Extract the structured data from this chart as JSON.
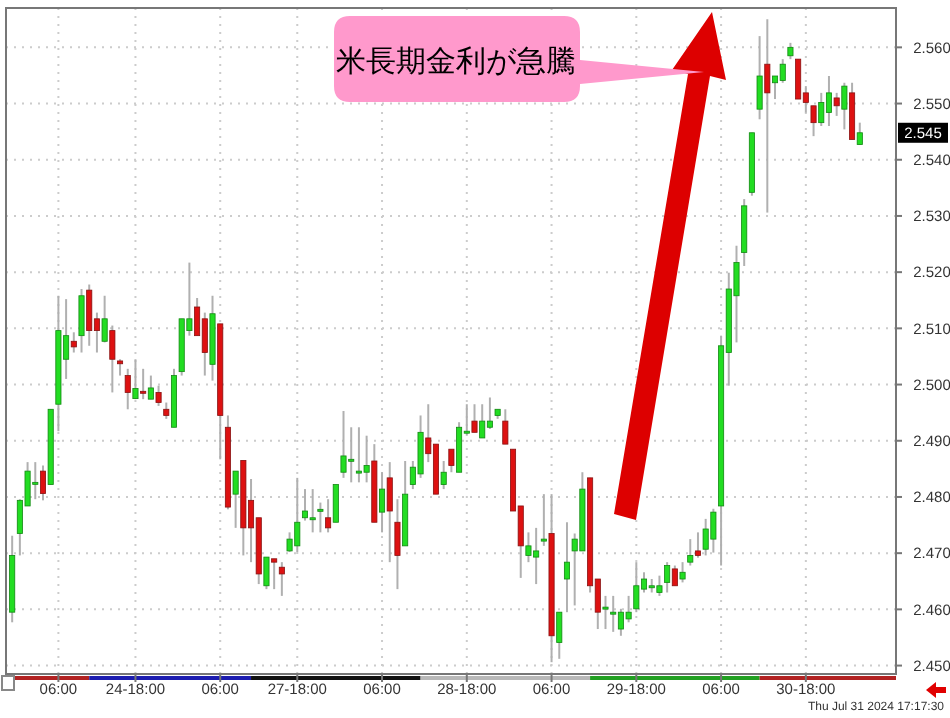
{
  "chart_data": {
    "type": "candlestick",
    "categories": [
      null,
      null,
      null,
      null,
      null,
      null,
      "06:00",
      null,
      null,
      null,
      null,
      null,
      null,
      null,
      null,
      null,
      "24-18:00",
      null,
      null,
      null,
      null,
      null,
      null,
      null,
      null,
      null,
      null,
      "06:00",
      null,
      null,
      null,
      null,
      null,
      null,
      null,
      null,
      null,
      "27-18:00",
      null,
      null,
      null,
      null,
      null,
      null,
      null,
      null,
      null,
      null,
      "06:00",
      null,
      null,
      null,
      null,
      null,
      null,
      null,
      null,
      null,
      null,
      "28-18:00",
      null,
      null,
      null,
      null,
      null,
      null,
      null,
      null,
      null,
      null,
      "06:00",
      null,
      null,
      null,
      null,
      null,
      null,
      null,
      null,
      null,
      null,
      "29-18:00",
      null,
      null,
      null,
      null,
      null,
      null,
      null,
      null,
      null,
      null,
      "06:00",
      null,
      null,
      null,
      null,
      null,
      null,
      null,
      null,
      null,
      null,
      "30-18:00",
      null,
      null,
      null,
      null,
      null,
      null,
      null
    ],
    "ohlc": [
      [
        2.4595,
        2.4731,
        2.4577,
        2.4696
      ],
      [
        2.4735,
        2.4796,
        2.4696,
        2.4794
      ],
      [
        2.4784,
        2.4862,
        2.4784,
        2.4846
      ],
      [
        2.4826,
        2.4862,
        2.4796,
        2.4826
      ],
      [
        2.4846,
        2.4856,
        2.4794,
        2.4806
      ],
      [
        2.4822,
        2.4956,
        2.4822,
        2.4956
      ],
      [
        2.4965,
        2.5158,
        2.4917,
        2.5096
      ],
      [
        2.5045,
        2.5152,
        2.501,
        2.5087
      ],
      [
        2.5077,
        2.5093,
        2.5057,
        2.5067
      ],
      [
        2.5087,
        2.517,
        2.5057,
        2.5158
      ],
      [
        2.5168,
        2.5178,
        2.5069,
        2.5096
      ],
      [
        2.5117,
        2.5128,
        2.5057,
        2.5096
      ],
      [
        2.5077,
        2.5158,
        2.5075,
        2.5117
      ],
      [
        2.5096,
        2.5105,
        2.4986,
        2.5045
      ],
      [
        2.5042,
        2.5045,
        2.5016,
        2.5037
      ],
      [
        2.5016,
        2.5028,
        2.4956,
        2.4986
      ],
      [
        2.4975,
        2.5045,
        2.4974,
        2.4993
      ],
      [
        2.4988,
        2.5028,
        2.4974,
        2.4986
      ],
      [
        2.4974,
        2.5016,
        2.4974,
        2.4994
      ],
      [
        2.4986,
        2.4998,
        2.4962,
        2.4968
      ],
      [
        2.4956,
        2.4968,
        2.4939,
        2.4945
      ],
      [
        2.4924,
        2.5028,
        2.4924,
        2.5016
      ],
      [
        2.5023,
        2.5117,
        2.5016,
        2.5117
      ],
      [
        2.5096,
        2.5217,
        2.5087,
        2.5117
      ],
      [
        2.5138,
        2.5154,
        2.5087,
        2.5087
      ],
      [
        2.5117,
        2.5128,
        2.5016,
        2.5057
      ],
      [
        2.5036,
        2.5158,
        2.5007,
        2.5126
      ],
      [
        2.5108,
        2.5108,
        2.4867,
        2.4945
      ],
      [
        2.4924,
        2.4945,
        2.4778,
        2.4782
      ],
      [
        2.4805,
        2.4846,
        2.4745,
        2.4846
      ],
      [
        2.4865,
        2.4865,
        2.4696,
        2.4745
      ],
      [
        2.4794,
        2.4832,
        2.4684,
        2.4745
      ],
      [
        2.4763,
        2.4763,
        2.4645,
        2.4663
      ],
      [
        2.4642,
        2.4693,
        2.4636,
        2.4693
      ],
      [
        2.469,
        2.469,
        2.4636,
        2.4684
      ],
      [
        2.4675,
        2.4684,
        2.4624,
        2.4663
      ],
      [
        2.4704,
        2.4737,
        2.4702,
        2.4725
      ],
      [
        2.4713,
        2.4834,
        2.4702,
        2.4755
      ],
      [
        2.4763,
        2.4814,
        2.4758,
        2.4775
      ],
      [
        2.4763,
        2.4814,
        2.4737,
        2.4763
      ],
      [
        2.4778,
        2.479,
        2.4737,
        2.4778
      ],
      [
        2.4763,
        2.4796,
        2.4737,
        2.4745
      ],
      [
        2.4755,
        2.4822,
        2.4755,
        2.4822
      ],
      [
        2.4844,
        2.4953,
        2.4834,
        2.4873
      ],
      [
        2.4867,
        2.4924,
        2.4826,
        2.4867
      ],
      [
        2.4846,
        2.4924,
        2.4826,
        2.4846
      ],
      [
        2.4844,
        2.4909,
        2.4826,
        2.4856
      ],
      [
        2.4864,
        2.4894,
        2.4755,
        2.4755
      ],
      [
        2.4773,
        2.4844,
        2.4737,
        2.4814
      ],
      [
        2.4834,
        2.4862,
        2.4684,
        2.4775
      ],
      [
        2.4755,
        2.4796,
        2.4636,
        2.4696
      ],
      [
        2.4713,
        2.4864,
        2.4713,
        2.4805
      ],
      [
        2.4822,
        2.4864,
        2.4814,
        2.4853
      ],
      [
        2.4841,
        2.4945,
        2.4834,
        2.4915
      ],
      [
        2.4905,
        2.4965,
        2.4862,
        2.4877
      ],
      [
        2.4894,
        2.4894,
        2.4805,
        2.4805
      ],
      [
        2.4822,
        2.4864,
        2.4814,
        2.4844
      ],
      [
        2.4885,
        2.4885,
        2.4844,
        2.4856
      ],
      [
        2.4844,
        2.4933,
        2.4844,
        2.4924
      ],
      [
        2.4917,
        2.4965,
        2.4909,
        2.4917
      ],
      [
        2.4935,
        2.4965,
        2.4915,
        2.4915
      ],
      [
        2.4905,
        2.4965,
        2.4905,
        2.4935
      ],
      [
        2.4924,
        2.4977,
        2.4921,
        2.4935
      ],
      [
        2.4945,
        2.4956,
        2.4939,
        2.4956
      ],
      [
        2.4935,
        2.4956,
        2.4894,
        2.4894
      ],
      [
        2.4885,
        2.4885,
        2.4775,
        2.4775
      ],
      [
        2.4784,
        2.4784,
        2.4656,
        2.4713
      ],
      [
        2.4696,
        2.4737,
        2.4684,
        2.4713
      ],
      [
        2.4693,
        2.4745,
        2.4645,
        2.4704
      ],
      [
        2.4725,
        2.4805,
        2.4713,
        2.4725
      ],
      [
        2.4735,
        2.4805,
        2.4506,
        2.4553
      ],
      [
        2.4541,
        2.4595,
        2.4512,
        2.4595
      ],
      [
        2.4654,
        2.4755,
        2.4595,
        2.4684
      ],
      [
        2.4704,
        2.4735,
        2.4607,
        2.4725
      ],
      [
        2.4704,
        2.4844,
        2.4704,
        2.4814
      ],
      [
        2.4834,
        2.4834,
        2.463,
        2.4642
      ],
      [
        2.4654,
        2.4654,
        2.4565,
        2.4595
      ],
      [
        2.4604,
        2.4624,
        2.4565,
        2.4604
      ],
      [
        2.4595,
        2.4624,
        2.456,
        2.4595
      ],
      [
        2.4565,
        2.4601,
        2.4553,
        2.4595
      ],
      [
        2.4583,
        2.4624,
        2.4577,
        2.4595
      ],
      [
        2.4601,
        2.4684,
        2.4595,
        2.4642
      ],
      [
        2.4636,
        2.4666,
        2.463,
        2.4654
      ],
      [
        2.4642,
        2.4654,
        2.463,
        2.4642
      ],
      [
        2.463,
        2.466,
        2.4624,
        2.4642
      ],
      [
        2.4648,
        2.4684,
        2.463,
        2.4678
      ],
      [
        2.4672,
        2.4678,
        2.4642,
        2.4642
      ],
      [
        2.4654,
        2.4684,
        2.4648,
        2.4666
      ],
      [
        2.4684,
        2.4725,
        2.4678,
        2.4696
      ],
      [
        2.4704,
        2.4737,
        2.4692,
        2.4696
      ],
      [
        2.4707,
        2.4761,
        2.4696,
        2.4743
      ],
      [
        2.4725,
        2.4779,
        2.4701,
        2.4773
      ],
      [
        2.4784,
        2.5087,
        2.4678,
        2.5069
      ],
      [
        2.5057,
        2.5199,
        2.4998,
        2.517
      ],
      [
        2.5158,
        2.5247,
        2.5075,
        2.5217
      ],
      [
        2.5235,
        2.533,
        2.5211,
        2.5318
      ],
      [
        2.5342,
        2.5448,
        2.5336,
        2.5448
      ],
      [
        2.549,
        2.562,
        2.5472,
        2.5549
      ],
      [
        2.557,
        2.565,
        2.5306,
        2.5519
      ],
      [
        2.5537,
        2.5549,
        2.5508,
        2.5549
      ],
      [
        2.5541,
        2.5579,
        2.5537,
        2.557
      ],
      [
        2.5585,
        2.5608,
        2.5579,
        2.56
      ],
      [
        2.5579,
        2.5579,
        2.5508,
        2.5508
      ],
      [
        2.5519,
        2.5531,
        2.5484,
        2.5502
      ],
      [
        2.5496,
        2.5496,
        2.5442,
        2.5466
      ],
      [
        2.5466,
        2.5519,
        2.546,
        2.5502
      ],
      [
        2.5484,
        2.5549,
        2.546,
        2.5519
      ],
      [
        2.551,
        2.5519,
        2.5478,
        2.5496
      ],
      [
        2.549,
        2.5537,
        2.5454,
        2.5531
      ],
      [
        2.5519,
        2.5537,
        2.5436,
        2.5436
      ],
      [
        2.5427,
        2.5466,
        2.5427,
        2.5448
      ]
    ],
    "ylim": [
      2.4485,
      2.567
    ],
    "yticks": [
      {
        "value": 2.45,
        "label": "2.450"
      },
      {
        "value": 2.46,
        "label": "2.460"
      },
      {
        "value": 2.47,
        "label": "2.470"
      },
      {
        "value": 2.48,
        "label": "2.480"
      },
      {
        "value": 2.49,
        "label": "2.490"
      },
      {
        "value": 2.5,
        "label": "2.500"
      },
      {
        "value": 2.51,
        "label": "2.510"
      },
      {
        "value": 2.52,
        "label": "2.520"
      },
      {
        "value": 2.53,
        "label": "2.530"
      },
      {
        "value": 2.54,
        "label": "2.540"
      },
      {
        "value": 2.55,
        "label": "2.550"
      },
      {
        "value": 2.56,
        "label": "2.560"
      }
    ],
    "grid": true,
    "annotations": [
      "米長期金利が急騰",
      "Thu Jul 31 2024 17:17:30",
      "2.545"
    ]
  }
}
